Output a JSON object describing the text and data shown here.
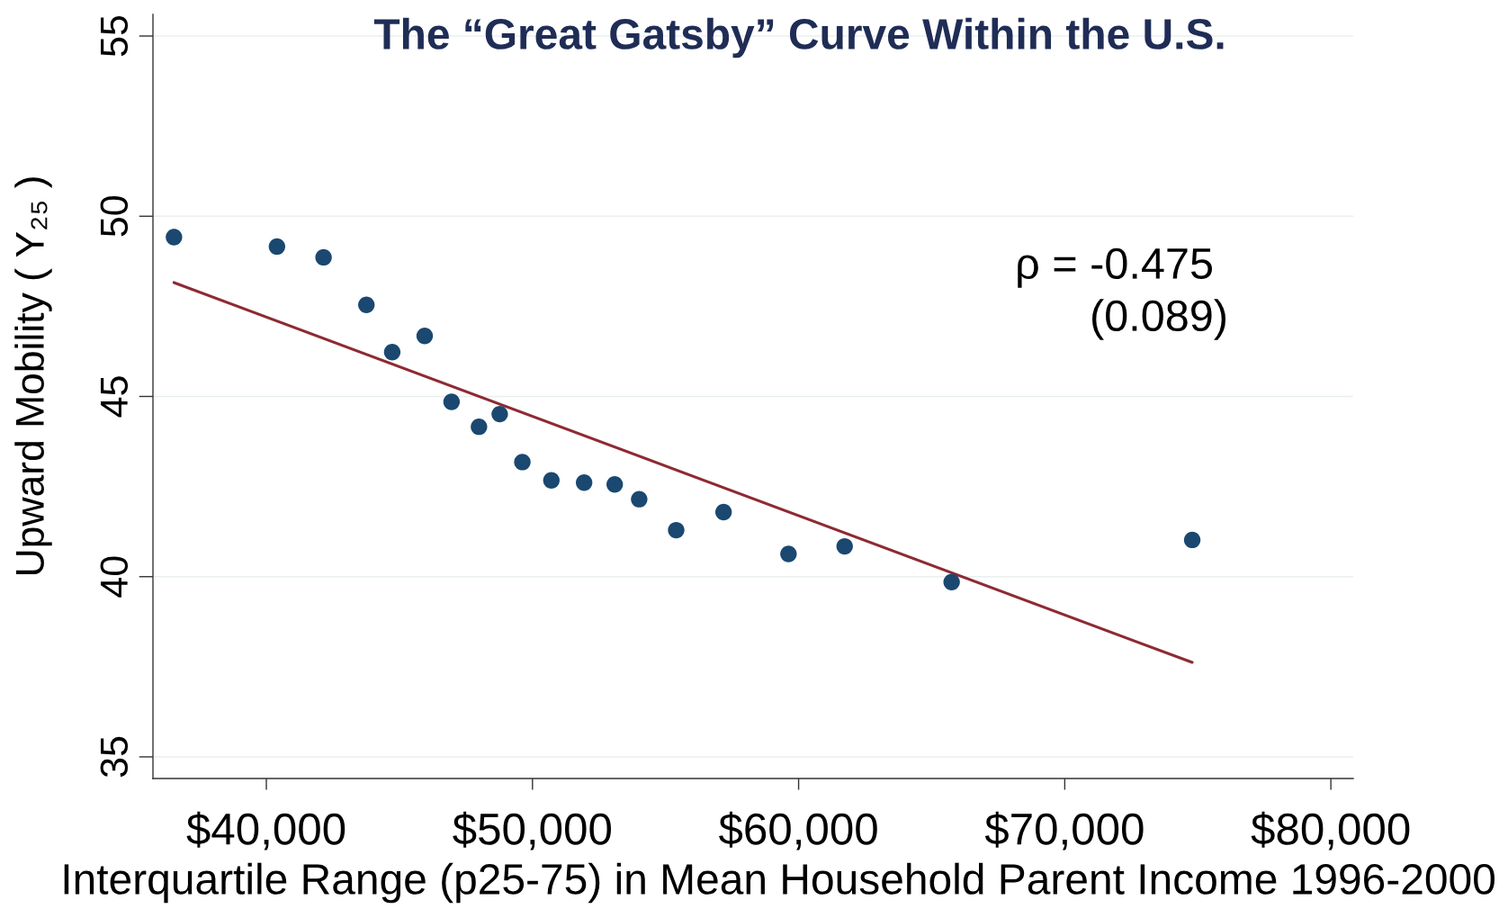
{
  "chart_data": {
    "type": "scatter",
    "title": "The “Great Gatsby” Curve Within the U.S.",
    "xlabel": "Interquartile Range (p25-75) in Mean Household Parent Income 1996-2000",
    "ylabel": "Upward Mobility ( Y₂₅ )",
    "series": [
      {
        "color": "#1b4870",
        "marker": "circle",
        "x": [
          36530,
          40400,
          42150,
          43760,
          44730,
          45950,
          46960,
          47990,
          48770,
          49620,
          50710,
          51940,
          53090,
          54010,
          55400,
          57180,
          59620,
          61730,
          65750,
          74790
        ],
        "values": [
          49.42,
          49.16,
          48.86,
          47.54,
          46.23,
          46.68,
          44.85,
          44.16,
          44.51,
          43.18,
          42.67,
          42.61,
          42.56,
          42.15,
          41.29,
          41.79,
          40.63,
          40.84,
          39.85,
          41.02
        ]
      },
      {
        "type": "line",
        "color": "#8e2a33",
        "line_style": "solid",
        "x": [
          36530,
          74790
        ],
        "values": [
          48.16,
          37.62
        ]
      }
    ],
    "xlim": [
      35740,
      80840
    ],
    "ylim": [
      34.4,
      55.6
    ],
    "xticks": [
      {
        "value": 40000,
        "label": "$40,000"
      },
      {
        "value": 50000,
        "label": "$50,000"
      },
      {
        "value": 60000,
        "label": "$60,000"
      },
      {
        "value": 70000,
        "label": "$70,000"
      },
      {
        "value": 80000,
        "label": "$80,000"
      }
    ],
    "yticks": [
      35,
      40,
      45,
      50,
      55
    ],
    "grid": "y",
    "annotations": [
      "ρ = -0.475",
      "(0.089)"
    ]
  }
}
